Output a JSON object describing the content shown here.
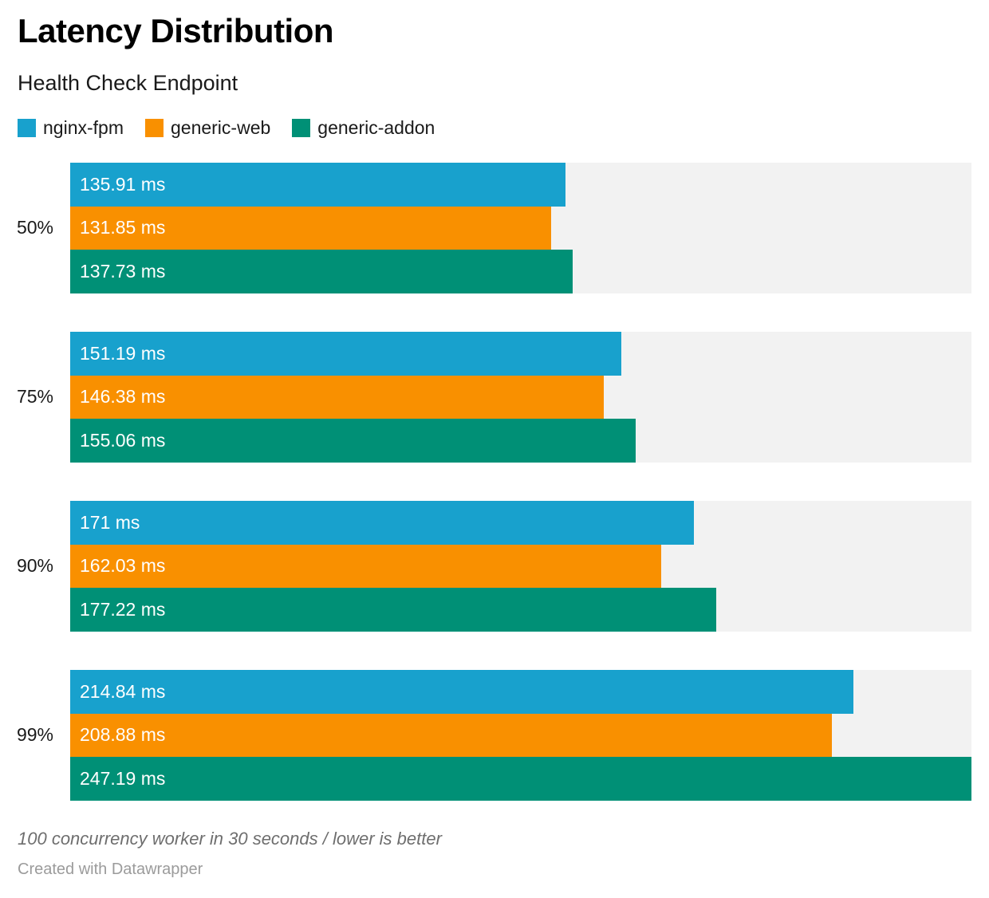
{
  "header": {
    "title": "Latency Distribution",
    "subtitle": "Health Check Endpoint"
  },
  "legend": [
    {
      "label": "nginx-fpm",
      "color": "#18a1cd"
    },
    {
      "label": "generic-web",
      "color": "#f99000"
    },
    {
      "label": "generic-addon",
      "color": "#009076"
    }
  ],
  "footer": {
    "notes": "100 concurrency worker in 30 seconds / lower is better",
    "credit": "Created with Datawrapper"
  },
  "chart_data": {
    "type": "bar",
    "orientation": "horizontal",
    "title": "Latency Distribution",
    "subtitle": "Health Check Endpoint",
    "unit": "ms",
    "categories": [
      "50%",
      "75%",
      "90%",
      "99%"
    ],
    "series": [
      {
        "name": "nginx-fpm",
        "color": "#18a1cd",
        "values": [
          135.91,
          151.19,
          171,
          214.84
        ],
        "labels": [
          "135.91 ms",
          "151.19 ms",
          "171 ms",
          "214.84 ms"
        ]
      },
      {
        "name": "generic-web",
        "color": "#f99000",
        "values": [
          131.85,
          146.38,
          162.03,
          208.88
        ],
        "labels": [
          "131.85 ms",
          "146.38 ms",
          "162.03 ms",
          "208.88 ms"
        ]
      },
      {
        "name": "generic-addon",
        "color": "#009076",
        "values": [
          137.73,
          155.06,
          177.22,
          247.19
        ],
        "labels": [
          "137.73 ms",
          "155.06 ms",
          "177.22 ms",
          "247.19 ms"
        ]
      }
    ],
    "xlim": [
      0,
      247.19
    ],
    "xmax": 247.19,
    "track_color": "#f2f2f2",
    "grid": false,
    "legend_position": "top",
    "value_labels": "inside-left"
  }
}
